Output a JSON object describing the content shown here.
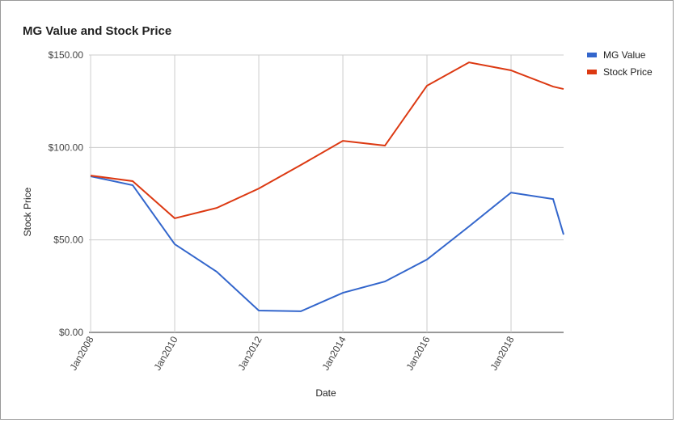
{
  "chart_data": {
    "type": "line",
    "title": "MG Value and Stock Price",
    "x_label": "Date",
    "y_label": "Stock Price",
    "x": [
      2008,
      2009,
      2010,
      2011,
      2012,
      2013,
      2014,
      2015,
      2016,
      2017,
      2018,
      2019,
      2019.25
    ],
    "series": [
      {
        "name": "MG Value",
        "color": "#3366cc",
        "values": [
          84.4,
          79.6,
          47.7,
          32.8,
          11.8,
          11.4,
          21.4,
          27.5,
          39.4,
          57.3,
          75.6,
          72.1,
          52.9
        ]
      },
      {
        "name": "Stock Price",
        "color": "#dc3912",
        "values": [
          84.8,
          81.8,
          61.7,
          67.3,
          77.8,
          90.5,
          103.6,
          101,
          133.4,
          146,
          141.7,
          132.9,
          131.6
        ]
      }
    ],
    "xlim": [
      2007.96,
      2019.25
    ],
    "xticks": [
      {
        "value": 2008,
        "label": "Jan2008"
      },
      {
        "value": 2010,
        "label": "Jan2010"
      },
      {
        "value": 2012,
        "label": "Jan2012"
      },
      {
        "value": 2014,
        "label": "Jan2014"
      },
      {
        "value": 2016,
        "label": "Jan2016"
      },
      {
        "value": 2018,
        "label": "Jan2018"
      }
    ],
    "ylim": [
      0,
      150
    ],
    "yticks": [
      {
        "value": 0,
        "label": "$0.00"
      },
      {
        "value": 50,
        "label": "$50.00"
      },
      {
        "value": 100,
        "label": "$100.00"
      },
      {
        "value": 150,
        "label": "$150.00"
      }
    ],
    "grid": true,
    "legend": "right"
  }
}
